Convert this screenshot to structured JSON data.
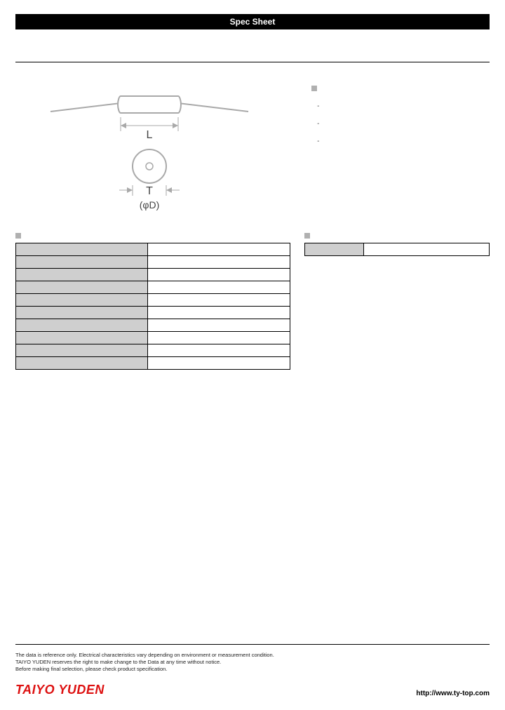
{
  "header": {
    "title": "Spec Sheet",
    "bg_color": "#000000",
    "text_color": "#ffffff"
  },
  "drawing": {
    "label_L": "L",
    "label_T": "T",
    "label_phiD": "(φD)",
    "stroke_color": "#a9a9a9",
    "label_color": "#444444"
  },
  "features": {
    "heading_marker_color": "#b0b0b0",
    "items": [
      "",
      "",
      ""
    ]
  },
  "spec_table": {
    "heading_marker_color": "#b0b0b0",
    "row_label_bg": "#cfcfcf",
    "border_color": "#000000",
    "rows": [
      {
        "label": "",
        "value": ""
      },
      {
        "label": "",
        "value": ""
      },
      {
        "label": "",
        "value": ""
      },
      {
        "label": "",
        "value": ""
      },
      {
        "label": "",
        "value": ""
      },
      {
        "label": "",
        "value": ""
      },
      {
        "label": "",
        "value": ""
      },
      {
        "label": "",
        "value": ""
      },
      {
        "label": "",
        "value": ""
      },
      {
        "label": "",
        "value": ""
      }
    ]
  },
  "small_table": {
    "heading_marker_color": "#b0b0b0",
    "row_label_bg": "#cfcfcf",
    "rows": [
      {
        "label": "",
        "value": ""
      }
    ]
  },
  "footer": {
    "disclaimer_lines": [
      "The data is reference only. Electrical characteristics vary depending on environment or measurement condition.",
      "TAIYO YUDEN reserves the right to make change to the Data at any time without notice.",
      "Before making final selection, please check product specification."
    ],
    "brand": "TAIYO YUDEN",
    "brand_color": "#dd1111",
    "url": "http://www.ty-top.com"
  }
}
